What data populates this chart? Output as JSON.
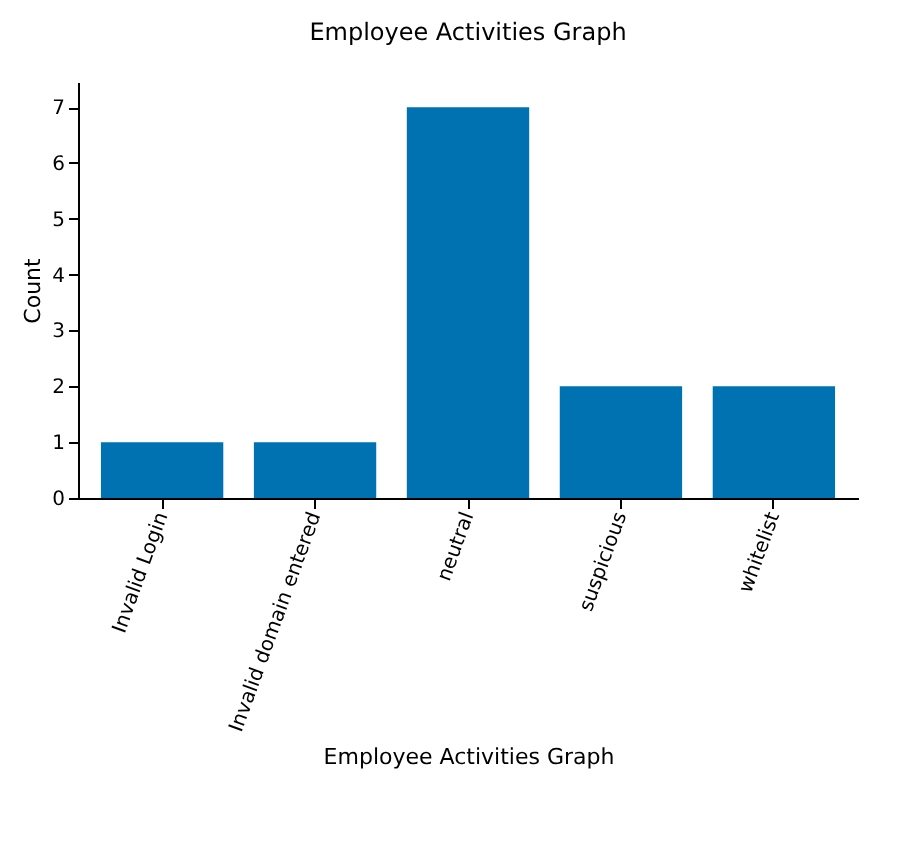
{
  "chart_data": {
    "type": "bar",
    "title": "Employee Activities Graph",
    "xlabel": "Employee Activities Graph",
    "ylabel": "Count",
    "categories": [
      "Invalid Login",
      "Invalid domain entered",
      "neutral",
      "suspicious",
      "whitelist"
    ],
    "values": [
      1,
      1,
      7,
      2,
      2
    ],
    "color": "#0072b2",
    "ylim": [
      0,
      7.45
    ],
    "yticks": [
      0,
      1,
      2,
      3,
      4,
      5,
      6,
      7
    ],
    "grid": false
  }
}
